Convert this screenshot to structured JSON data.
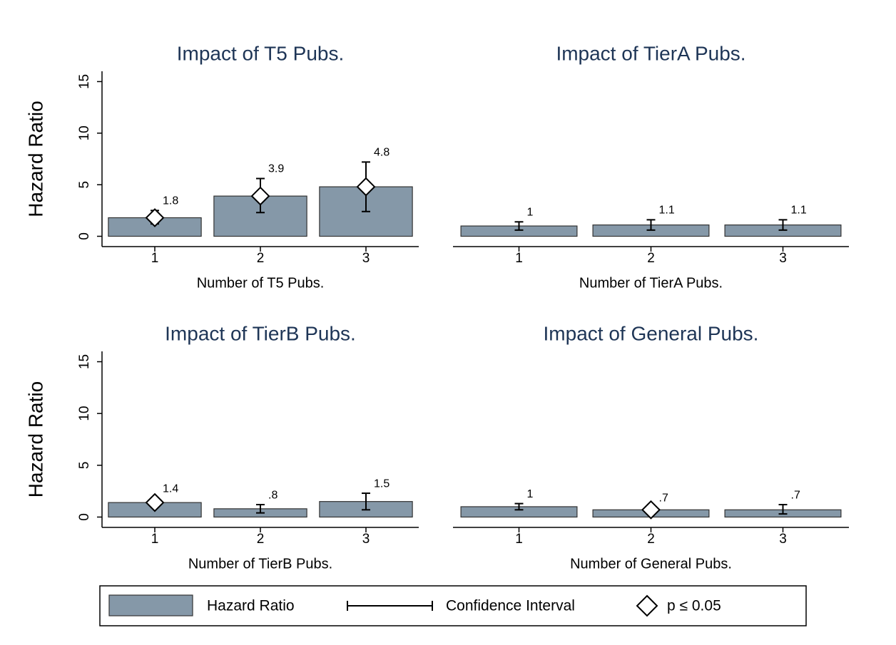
{
  "chart_data": [
    {
      "type": "bar",
      "title": "Impact of T5 Pubs.",
      "x_label": "Number of T5 Pubs.",
      "y_label": "Hazard Ratio",
      "categories": [
        "1",
        "2",
        "3"
      ],
      "series": [
        {
          "name": "Hazard Ratio",
          "color": "#8598a8",
          "values": [
            1.8,
            3.9,
            4.8
          ],
          "value_labels": [
            "1.8",
            "3.9",
            "4.8"
          ],
          "ci_low": [
            1.2,
            2.3,
            2.4
          ],
          "ci_high": [
            2.5,
            5.6,
            7.2
          ],
          "significant": [
            true,
            true,
            true
          ]
        }
      ],
      "ylim": [
        -1,
        16
      ],
      "yticks": [
        0,
        5,
        10,
        15
      ]
    },
    {
      "type": "bar",
      "title": "Impact of TierA Pubs.",
      "x_label": "Number of TierA Pubs.",
      "categories": [
        "1",
        "2",
        "3"
      ],
      "series": [
        {
          "name": "Hazard Ratio",
          "color": "#8598a8",
          "values": [
            1,
            1.1,
            1.1
          ],
          "value_labels": [
            "1",
            "1.1",
            "1.1"
          ],
          "ci_low": [
            0.6,
            0.6,
            0.6
          ],
          "ci_high": [
            1.4,
            1.6,
            1.6
          ],
          "significant": [
            false,
            false,
            false
          ]
        }
      ],
      "ylim": [
        -1,
        16
      ]
    },
    {
      "type": "bar",
      "title": "Impact of TierB Pubs.",
      "x_label": "Number of TierB Pubs.",
      "y_label": "Hazard Ratio",
      "categories": [
        "1",
        "2",
        "3"
      ],
      "series": [
        {
          "name": "Hazard Ratio",
          "color": "#8598a8",
          "values": [
            1.4,
            0.8,
            1.5
          ],
          "value_labels": [
            "1.4",
            ".8",
            "1.5"
          ],
          "ci_low": [
            1.1,
            0.4,
            0.7
          ],
          "ci_high": [
            1.8,
            1.2,
            2.3
          ],
          "significant": [
            true,
            false,
            false
          ]
        }
      ],
      "ylim": [
        -1,
        16
      ],
      "yticks": [
        0,
        5,
        10,
        15
      ]
    },
    {
      "type": "bar",
      "title": "Impact of General Pubs.",
      "x_label": "Number of General Pubs.",
      "categories": [
        "1",
        "2",
        "3"
      ],
      "series": [
        {
          "name": "Hazard Ratio",
          "color": "#8598a8",
          "values": [
            1,
            0.7,
            0.7
          ],
          "value_labels": [
            "1",
            ".7",
            ".7"
          ],
          "ci_low": [
            0.7,
            0.5,
            0.3
          ],
          "ci_high": [
            1.3,
            0.9,
            1.2
          ],
          "significant": [
            false,
            true,
            false
          ]
        }
      ],
      "ylim": [
        -1,
        16
      ]
    }
  ],
  "legend": {
    "ci": "Confidence Interval",
    "sig": "p ≤ 0.05"
  }
}
